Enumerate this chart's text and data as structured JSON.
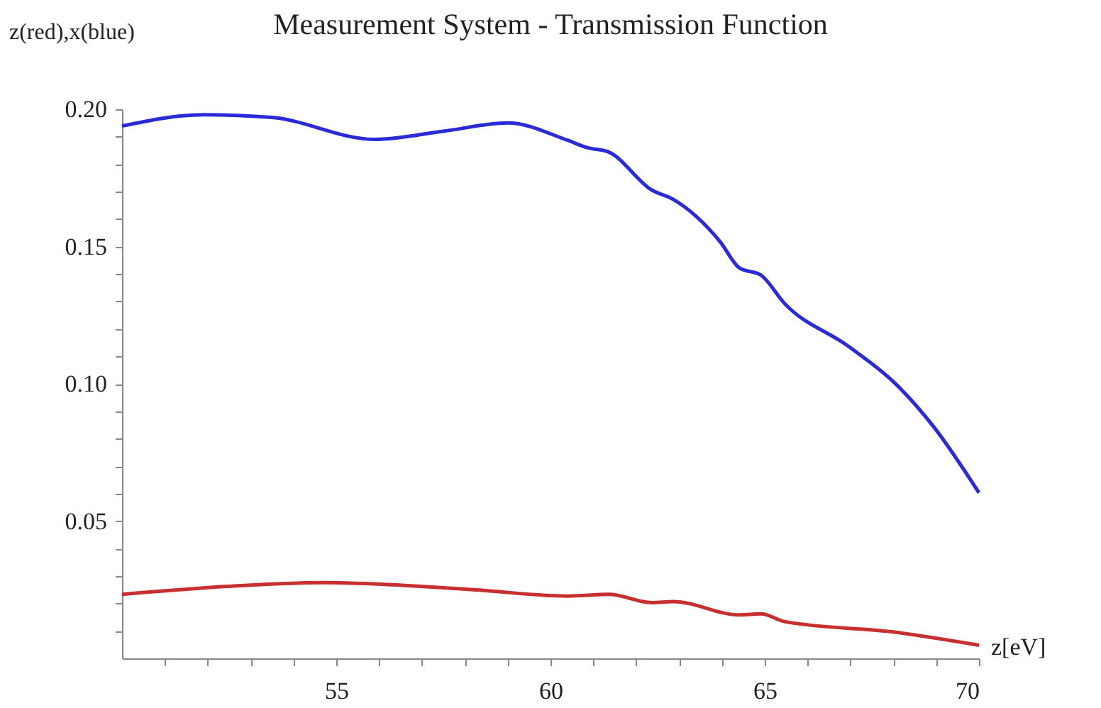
{
  "chart_data": {
    "type": "line",
    "title": "Measurement System - Transmission Function",
    "xlabel": "z[eV]",
    "ylabel": "z(red),x(blue)",
    "xlim": [
      50,
      70
    ],
    "ylim": [
      0,
      0.2
    ],
    "xticks": [
      {
        "value": 51,
        "label": null
      },
      {
        "value": 52,
        "label": null
      },
      {
        "value": 53,
        "label": null
      },
      {
        "value": 54,
        "label": null
      },
      55,
      {
        "value": 56,
        "label": null
      },
      {
        "value": 57,
        "label": null
      },
      {
        "value": 58,
        "label": null
      },
      {
        "value": 59,
        "label": null
      },
      60,
      {
        "value": 61,
        "label": null
      },
      {
        "value": 62,
        "label": null
      },
      {
        "value": 63,
        "label": null
      },
      {
        "value": 64,
        "label": null
      },
      65,
      {
        "value": 66,
        "label": null
      },
      {
        "value": 67,
        "label": null
      },
      {
        "value": 68,
        "label": null
      },
      {
        "value": 69,
        "label": null
      },
      70
    ],
    "yticks": [
      {
        "value": 0.01,
        "label": null
      },
      {
        "value": 0.02,
        "label": null
      },
      {
        "value": 0.03,
        "label": null
      },
      {
        "value": 0.04,
        "label": null
      },
      0.05,
      {
        "value": 0.06,
        "label": null
      },
      {
        "value": 0.07,
        "label": null
      },
      {
        "value": 0.08,
        "label": null
      },
      {
        "value": 0.09,
        "label": null
      },
      {
        "value": 0.1,
        "label": "0.10"
      },
      {
        "value": 0.11,
        "label": null
      },
      {
        "value": 0.12,
        "label": null
      },
      {
        "value": 0.13,
        "label": null
      },
      {
        "value": 0.14,
        "label": null
      },
      0.15,
      {
        "value": 0.16,
        "label": null
      },
      {
        "value": 0.17,
        "label": null
      },
      {
        "value": 0.18,
        "label": null
      },
      {
        "value": 0.19,
        "label": null
      },
      {
        "value": 0.2,
        "label": "0.20"
      }
    ],
    "grid": false,
    "line_style": "solid",
    "marker": "none",
    "series": [
      {
        "color": "#2a2ad8",
        "x": [
          50,
          51.9,
          53.5,
          55.9,
          57.5,
          59.0,
          60.4,
          60.86,
          61.36,
          62.36,
          62.86,
          63.96,
          64.41,
          64.91,
          65.46,
          66.95,
          68.06,
          68.94,
          70
        ],
        "values": [
          0.1939,
          0.198,
          0.197,
          0.189,
          0.192,
          0.195,
          0.1887,
          0.186,
          0.1844,
          0.1706,
          0.1672,
          0.1517,
          0.1422,
          0.1396,
          0.1293,
          0.1137,
          0.0999,
          0.0844,
          0.0603
        ]
      },
      {
        "color": "#c83030",
        "x": [
          50,
          52.46,
          54.67,
          58.2,
          60.4,
          61.36,
          62.36,
          62.86,
          64.41,
          64.91,
          65.46,
          68.06,
          70
        ],
        "values": [
          0.0233,
          0.0262,
          0.0276,
          0.025,
          0.0227,
          0.0233,
          0.0203,
          0.0207,
          0.0158,
          0.0162,
          0.0134,
          0.0095,
          0.0048
        ]
      }
    ]
  }
}
